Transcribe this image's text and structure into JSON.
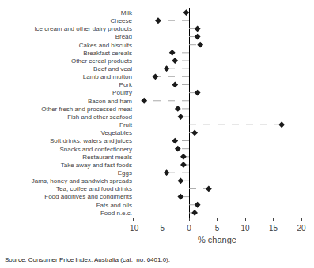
{
  "chart_data": {
    "type": "lollipop",
    "orientation": "horizontal",
    "categories": [
      "Milk",
      "Cheese",
      "Ice cream and other dairy products",
      "Bread",
      "Cakes and biscuits",
      "Breakfast cereals",
      "Other cereal products",
      "Beef and veal",
      "Lamb and mutton",
      "Pork",
      "Poultry",
      "Bacon and ham",
      "Other fresh and processed meat",
      "Fish and other seafood",
      "Fruit",
      "Vegetables",
      "Soft drinks, waters and juices",
      "Snacks and confectionery",
      "Restaurant meals",
      "Take away and fast foods",
      "Eggs",
      "Jams, honey and sandwich spreads",
      "Tea, coffee and food drinks",
      "Food additives and condiments",
      "Fats and oils",
      "Food n.e.c."
    ],
    "values": [
      -0.5,
      -5.5,
      1.5,
      1.5,
      2.0,
      -3.0,
      -2.5,
      -4.0,
      -6.0,
      -2.5,
      1.5,
      -8.0,
      -2.0,
      -1.5,
      16.5,
      1.0,
      -2.5,
      -2.0,
      -1.0,
      -1.0,
      -4.0,
      -1.5,
      3.5,
      -1.5,
      1.5,
      1.0
    ],
    "xlabel": "% change",
    "xlim": [
      -10,
      20
    ],
    "xticks": [
      -10,
      -5,
      0,
      5,
      10,
      15,
      20
    ],
    "annotations": [
      "Source: Consumer Price Index, Australia (cat.  no. 6401.0)."
    ],
    "color": "#1a1a1a",
    "marker": "diamond",
    "line_style": "dashed",
    "grid": false
  }
}
